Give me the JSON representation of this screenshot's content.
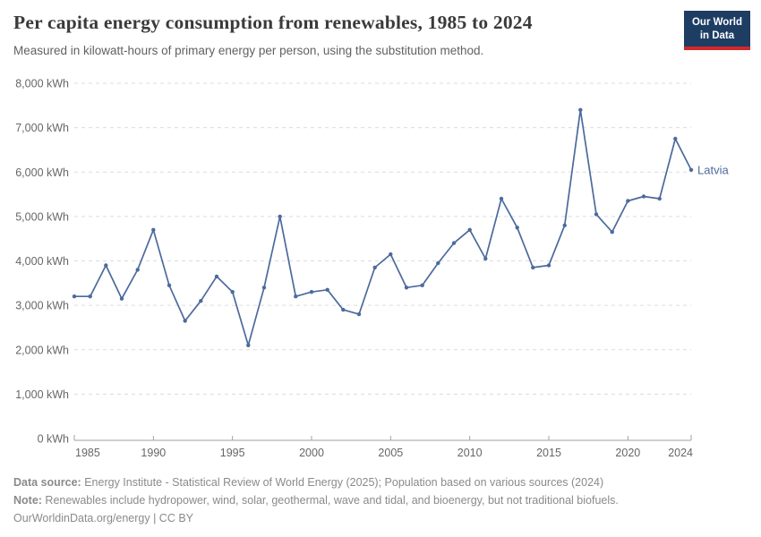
{
  "header": {
    "title": "Per capita energy consumption from renewables, 1985 to 2024",
    "subtitle": "Measured in kilowatt-hours of primary energy per person, using the substitution method.",
    "logo": {
      "line1": "Our World",
      "line2": "in Data"
    }
  },
  "chart_data": {
    "type": "line",
    "title": "Per capita energy consumption from renewables, 1985 to 2024",
    "subtitle": "Measured in kilowatt-hours of primary energy per person, using the substitution method.",
    "xlabel": "",
    "ylabel": "kWh",
    "xlim": [
      1985,
      2024
    ],
    "ylim": [
      0,
      8000
    ],
    "grid": "horizontal-dashed",
    "legend_position": "end-of-line-label",
    "x_ticks": [
      1985,
      1990,
      1995,
      2000,
      2005,
      2010,
      2015,
      2020,
      2024
    ],
    "y_ticks": [
      0,
      1000,
      2000,
      3000,
      4000,
      5000,
      6000,
      7000,
      8000
    ],
    "y_tick_suffix": " kWh",
    "x": [
      1985,
      1986,
      1987,
      1988,
      1989,
      1990,
      1991,
      1992,
      1993,
      1994,
      1995,
      1996,
      1997,
      1998,
      1999,
      2000,
      2001,
      2002,
      2003,
      2004,
      2005,
      2006,
      2007,
      2008,
      2009,
      2010,
      2011,
      2012,
      2013,
      2014,
      2015,
      2016,
      2017,
      2018,
      2019,
      2020,
      2021,
      2022,
      2023,
      2024
    ],
    "series": [
      {
        "name": "Latvia",
        "color": "#4c6a9c",
        "values": [
          3200,
          3200,
          3900,
          3150,
          3800,
          4700,
          3450,
          2650,
          3100,
          3650,
          3300,
          2100,
          3400,
          5000,
          3200,
          3300,
          3350,
          2900,
          2800,
          3850,
          4150,
          3400,
          3450,
          3950,
          4400,
          4700,
          4050,
          5400,
          4750,
          3850,
          3900,
          4800,
          7400,
          5050,
          4650,
          5350,
          5450,
          5400,
          6750,
          6050
        ]
      }
    ]
  },
  "footer": {
    "data_source_label": "Data source:",
    "data_source": " Energy Institute - Statistical Review of World Energy (2025); Population based on various sources (2024)",
    "note_label": "Note:",
    "note": " Renewables include hydropower, wind, solar, geothermal, wave and tidal, and bioenergy, but not traditional biofuels.",
    "license": "OurWorldinData.org/energy | CC BY"
  },
  "colors": {
    "line": "#4c6a9c",
    "series_label": "#4c6a9c",
    "grid": "#dcdcdc",
    "axis": "#a0a0a0",
    "tick_text": "#666666",
    "title_text": "#3a3a3a",
    "subtitle_text": "#616161",
    "footer_text": "#8a8a8a",
    "logo_bg": "#1d3d63",
    "logo_bar": "#d2282d"
  }
}
